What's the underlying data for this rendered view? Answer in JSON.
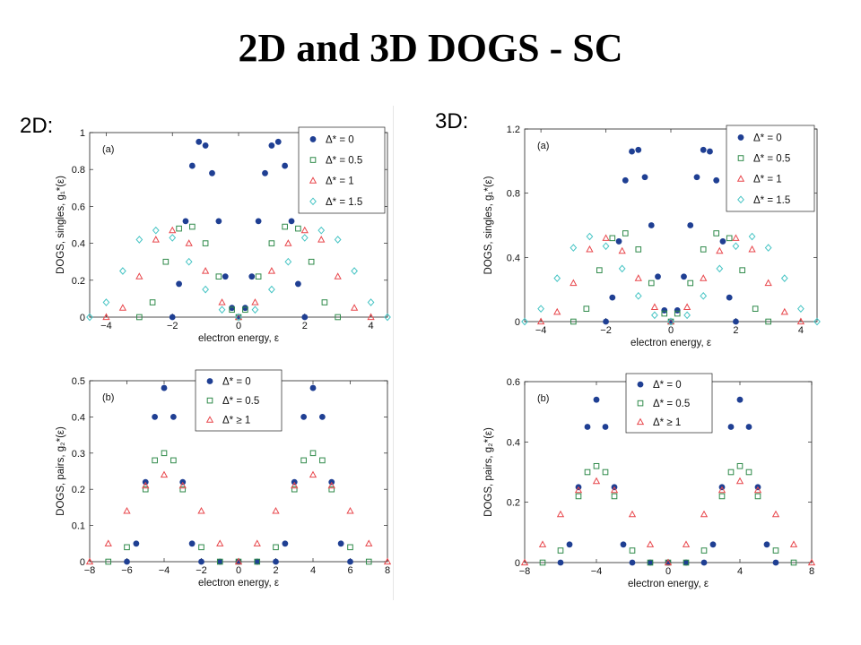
{
  "slide": {
    "title": "2D and 3D DOGS - SC"
  },
  "sections": {
    "left_label": "2D:",
    "right_label": "3D:"
  },
  "colors": {
    "delta_0": "#1f3f93",
    "delta_05": "#2f8a4a",
    "delta_1": "#e8474c",
    "delta_15": "#45c4c4"
  },
  "chart_data": [
    {
      "id": "2d-singles",
      "type": "scatter",
      "panel_label": "(a)",
      "xlabel": "electron energy, ε",
      "ylabel": "DOGS, singles, g₁*(ε)",
      "xlim": [
        -4.5,
        4.5
      ],
      "ylim": [
        0,
        1
      ],
      "xticks": [
        -4,
        -2,
        0,
        2,
        4
      ],
      "yticks": [
        0,
        0.2,
        0.4,
        0.6,
        0.8,
        1
      ],
      "legend": "top-right",
      "series": [
        {
          "name": "Δ* = 0",
          "marker": "dot",
          "color": "#1f3f93",
          "x": [
            -2.0,
            -1.8,
            -1.6,
            -1.4,
            -1.2,
            -1.0,
            -0.8,
            -0.6,
            -0.4,
            -0.2,
            0,
            0.2,
            0.4,
            0.6,
            0.8,
            1.0,
            1.2,
            1.4,
            1.6,
            1.8,
            2.0
          ],
          "y": [
            0,
            0.18,
            0.52,
            0.82,
            0.95,
            0.93,
            0.78,
            0.52,
            0.22,
            0.05,
            0,
            0.05,
            0.22,
            0.52,
            0.78,
            0.93,
            0.95,
            0.82,
            0.52,
            0.18,
            0
          ]
        },
        {
          "name": "Δ* = 0.5",
          "marker": "square",
          "color": "#2f8a4a",
          "x": [
            -3.0,
            -2.6,
            -2.2,
            -1.8,
            -1.4,
            -1.0,
            -0.6,
            -0.2,
            0,
            0.2,
            0.6,
            1.0,
            1.4,
            1.8,
            2.2,
            2.6,
            3.0
          ],
          "y": [
            0,
            0.08,
            0.3,
            0.48,
            0.49,
            0.4,
            0.22,
            0.04,
            0,
            0.04,
            0.22,
            0.4,
            0.49,
            0.48,
            0.3,
            0.08,
            0
          ]
        },
        {
          "name": "Δ* = 1",
          "marker": "triangle",
          "color": "#e8474c",
          "x": [
            -4.0,
            -3.5,
            -3.0,
            -2.5,
            -2.0,
            -1.5,
            -1.0,
            -0.5,
            0,
            0.5,
            1.0,
            1.5,
            2.0,
            2.5,
            3.0,
            3.5,
            4.0
          ],
          "y": [
            0,
            0.05,
            0.22,
            0.42,
            0.47,
            0.4,
            0.25,
            0.08,
            0,
            0.08,
            0.25,
            0.4,
            0.47,
            0.42,
            0.22,
            0.05,
            0
          ]
        },
        {
          "name": "Δ* = 1.5",
          "marker": "diamond",
          "color": "#45c4c4",
          "x": [
            -4.5,
            -4.0,
            -3.5,
            -3.0,
            -2.5,
            -2.0,
            -1.5,
            -1.0,
            -0.5,
            0,
            0.5,
            1.0,
            1.5,
            2.0,
            2.5,
            3.0,
            3.5,
            4.0,
            4.5
          ],
          "y": [
            0,
            0.08,
            0.25,
            0.42,
            0.47,
            0.43,
            0.3,
            0.15,
            0.04,
            0,
            0.04,
            0.15,
            0.3,
            0.43,
            0.47,
            0.42,
            0.25,
            0.08,
            0
          ]
        }
      ]
    },
    {
      "id": "2d-pairs",
      "type": "scatter",
      "panel_label": "(b)",
      "xlabel": "electron energy, ε",
      "ylabel": "DOGS, pairs, g₂*(ε)",
      "xlim": [
        -8,
        8
      ],
      "ylim": [
        0,
        0.5
      ],
      "xticks": [
        -8,
        -6,
        -4,
        -2,
        0,
        2,
        4,
        6,
        8
      ],
      "yticks": [
        0,
        0.1,
        0.2,
        0.3,
        0.4,
        0.5
      ],
      "legend": "top-center",
      "series": [
        {
          "name": "Δ* = 0",
          "marker": "dot",
          "color": "#1f3f93",
          "x": [
            -6,
            -5.5,
            -5,
            -4.5,
            -4,
            -3.5,
            -3,
            -2.5,
            -2,
            -1,
            0,
            1,
            2,
            2.5,
            3,
            3.5,
            4,
            4.5,
            5,
            5.5,
            6
          ],
          "y": [
            0,
            0.05,
            0.22,
            0.4,
            0.48,
            0.4,
            0.22,
            0.05,
            0,
            0,
            0,
            0,
            0,
            0.05,
            0.22,
            0.4,
            0.48,
            0.4,
            0.22,
            0.05,
            0
          ]
        },
        {
          "name": "Δ* = 0.5",
          "marker": "square",
          "color": "#2f8a4a",
          "x": [
            -7,
            -6,
            -5,
            -4.5,
            -4,
            -3.5,
            -3,
            -2,
            -1,
            0,
            1,
            2,
            3,
            3.5,
            4,
            4.5,
            5,
            6,
            7
          ],
          "y": [
            0,
            0.04,
            0.2,
            0.28,
            0.3,
            0.28,
            0.2,
            0.04,
            0,
            0,
            0,
            0.04,
            0.2,
            0.28,
            0.3,
            0.28,
            0.2,
            0.04,
            0
          ]
        },
        {
          "name": "Δ* ≥ 1",
          "marker": "triangle",
          "color": "#e8474c",
          "x": [
            -8,
            -7,
            -6,
            -5,
            -4,
            -3,
            -2,
            -1,
            0,
            1,
            2,
            3,
            4,
            5,
            6,
            7,
            8
          ],
          "y": [
            0,
            0.05,
            0.14,
            0.21,
            0.24,
            0.21,
            0.14,
            0.05,
            0,
            0.05,
            0.14,
            0.21,
            0.24,
            0.21,
            0.14,
            0.05,
            0
          ]
        }
      ]
    },
    {
      "id": "3d-singles",
      "type": "scatter",
      "panel_label": "(a)",
      "xlabel": "electron energy, ε",
      "ylabel": "DOGS, singles, g₁*(ε)",
      "xlim": [
        -4.5,
        4.5
      ],
      "ylim": [
        0,
        1.2
      ],
      "xticks": [
        -4,
        -2,
        0,
        2,
        4
      ],
      "yticks": [
        0,
        0.4,
        0.8,
        1.2
      ],
      "legend": "top-right",
      "series": [
        {
          "name": "Δ* = 0",
          "marker": "dot",
          "color": "#1f3f93",
          "x": [
            -2.0,
            -1.8,
            -1.6,
            -1.4,
            -1.2,
            -1.0,
            -0.8,
            -0.6,
            -0.4,
            -0.2,
            0,
            0.2,
            0.4,
            0.6,
            0.8,
            1.0,
            1.2,
            1.4,
            1.6,
            1.8,
            2.0
          ],
          "y": [
            0,
            0.15,
            0.5,
            0.88,
            1.06,
            1.07,
            0.9,
            0.6,
            0.28,
            0.07,
            0,
            0.07,
            0.28,
            0.6,
            0.9,
            1.07,
            1.06,
            0.88,
            0.5,
            0.15,
            0
          ]
        },
        {
          "name": "Δ* = 0.5",
          "marker": "square",
          "color": "#2f8a4a",
          "x": [
            -3.0,
            -2.6,
            -2.2,
            -1.8,
            -1.4,
            -1.0,
            -0.6,
            -0.2,
            0,
            0.2,
            0.6,
            1.0,
            1.4,
            1.8,
            2.2,
            2.6,
            3.0
          ],
          "y": [
            0,
            0.08,
            0.32,
            0.52,
            0.55,
            0.45,
            0.24,
            0.05,
            0,
            0.05,
            0.24,
            0.45,
            0.55,
            0.52,
            0.32,
            0.08,
            0
          ]
        },
        {
          "name": "Δ* = 1",
          "marker": "triangle",
          "color": "#e8474c",
          "x": [
            -4.0,
            -3.5,
            -3.0,
            -2.5,
            -2.0,
            -1.5,
            -1.0,
            -0.5,
            0,
            0.5,
            1.0,
            1.5,
            2.0,
            2.5,
            3.0,
            3.5,
            4.0
          ],
          "y": [
            0,
            0.06,
            0.24,
            0.45,
            0.52,
            0.44,
            0.27,
            0.09,
            0,
            0.09,
            0.27,
            0.44,
            0.52,
            0.45,
            0.24,
            0.06,
            0
          ]
        },
        {
          "name": "Δ* = 1.5",
          "marker": "diamond",
          "color": "#45c4c4",
          "x": [
            -4.5,
            -4.0,
            -3.5,
            -3.0,
            -2.5,
            -2.0,
            -1.5,
            -1.0,
            -0.5,
            0,
            0.5,
            1.0,
            1.5,
            2.0,
            2.5,
            3.0,
            3.5,
            4.0,
            4.5
          ],
          "y": [
            0,
            0.08,
            0.27,
            0.46,
            0.53,
            0.47,
            0.33,
            0.16,
            0.04,
            0,
            0.04,
            0.16,
            0.33,
            0.47,
            0.53,
            0.46,
            0.27,
            0.08,
            0
          ]
        }
      ]
    },
    {
      "id": "3d-pairs",
      "type": "scatter",
      "panel_label": "(b)",
      "xlabel": "electron energy, ε",
      "ylabel": "DOGS, pairs, g₂*(ε)",
      "xlim": [
        -8,
        8
      ],
      "ylim": [
        0,
        0.6
      ],
      "xticks": [
        -8,
        -4,
        0,
        4,
        8
      ],
      "yticks": [
        0,
        0.2,
        0.4,
        0.6
      ],
      "legend": "top-center",
      "series": [
        {
          "name": "Δ* = 0",
          "marker": "dot",
          "color": "#1f3f93",
          "x": [
            -6,
            -5.5,
            -5,
            -4.5,
            -4,
            -3.5,
            -3,
            -2.5,
            -2,
            -1,
            0,
            1,
            2,
            2.5,
            3,
            3.5,
            4,
            4.5,
            5,
            5.5,
            6
          ],
          "y": [
            0,
            0.06,
            0.25,
            0.45,
            0.54,
            0.45,
            0.25,
            0.06,
            0,
            0,
            0,
            0,
            0,
            0.06,
            0.25,
            0.45,
            0.54,
            0.45,
            0.25,
            0.06,
            0
          ]
        },
        {
          "name": "Δ* = 0.5",
          "marker": "square",
          "color": "#2f8a4a",
          "x": [
            -7,
            -6,
            -5,
            -4.5,
            -4,
            -3.5,
            -3,
            -2,
            -1,
            0,
            1,
            2,
            3,
            3.5,
            4,
            4.5,
            5,
            6,
            7
          ],
          "y": [
            0,
            0.04,
            0.22,
            0.3,
            0.32,
            0.3,
            0.22,
            0.04,
            0,
            0,
            0,
            0.04,
            0.22,
            0.3,
            0.32,
            0.3,
            0.22,
            0.04,
            0
          ]
        },
        {
          "name": "Δ* ≥ 1",
          "marker": "triangle",
          "color": "#e8474c",
          "x": [
            -8,
            -7,
            -6,
            -5,
            -4,
            -3,
            -2,
            -1,
            0,
            1,
            2,
            3,
            4,
            5,
            6,
            7,
            8
          ],
          "y": [
            0,
            0.06,
            0.16,
            0.24,
            0.27,
            0.24,
            0.16,
            0.06,
            0,
            0.06,
            0.16,
            0.24,
            0.27,
            0.24,
            0.16,
            0.06,
            0
          ]
        }
      ]
    }
  ]
}
